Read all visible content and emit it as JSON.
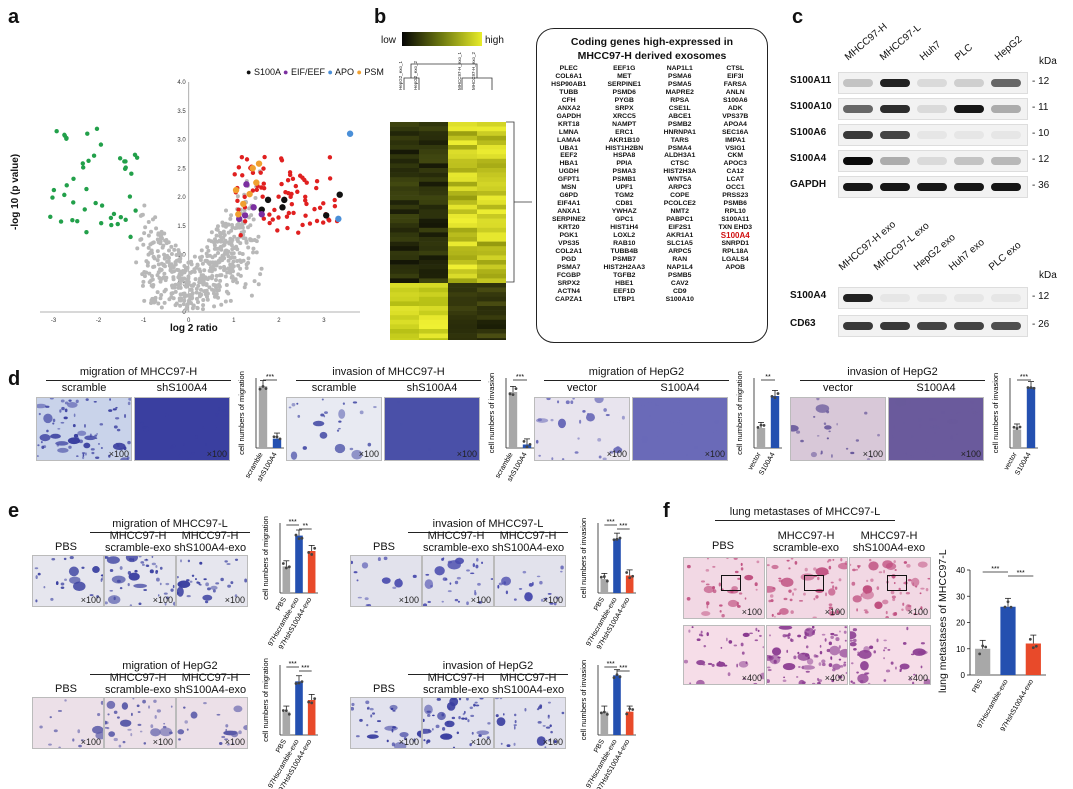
{
  "panels": {
    "a": "a",
    "b": "b",
    "c": "c",
    "d": "d",
    "e": "e",
    "f": "f"
  },
  "panel_a": {
    "legend": [
      {
        "label": "S100A",
        "color": "#111111"
      },
      {
        "label": "EIF/EEF",
        "color": "#7b2fa0"
      },
      {
        "label": "APO",
        "color": "#4a8fd8"
      },
      {
        "label": "PSM",
        "color": "#f0a030"
      }
    ],
    "ylabel": "-log 10 (p value)",
    "xlabel": "log 2 ratio",
    "xticks": [
      "-3",
      "-2",
      "-1",
      "0",
      "1",
      "2",
      "3"
    ],
    "yticks": [
      "0",
      "0.5",
      "1.0",
      "1.5",
      "2.0",
      "2.5",
      "3.0",
      "3.5",
      "4.0"
    ]
  },
  "panel_b": {
    "low": "low",
    "high": "high",
    "columns": [
      "HepG2_exo_1",
      "HepG2_exo_2",
      "MHCC97-H_exo_1",
      "MHCC97-H_exo_2"
    ],
    "box_title_1": "Coding genes high-expressed in",
    "box_title_2": "MHCC97-H derived exosomes",
    "genes": [
      "PLEC",
      "EEF1G",
      "NAP1L1",
      "CTSL",
      "COL6A1",
      "MET",
      "PSMA6",
      "EIF3I",
      "HSP90AB1",
      "SERPINE1",
      "PSMA5",
      "FARSA",
      "TUBB",
      "PSMD6",
      "MAPRE2",
      "ANLN",
      "CFH",
      "PYGB",
      "RPSA",
      "S100A6",
      "ANXA2",
      "SRPX",
      "CSE1L",
      "ADK",
      "GAPDH",
      "XRCC5",
      "ABCE1",
      "VPS37B",
      "KRT18",
      "NAMPT",
      "PSMB2",
      "APOA4",
      "LMNA",
      "ERC1",
      "HNRNPA1",
      "SEC16A",
      "LAMA4",
      "AKR1B10",
      "TARS",
      "IMPA1",
      "UBA1",
      "HIST1H2BN",
      "PSMA4",
      "VSIG1",
      "EEF2",
      "HSPA8",
      "ALDH3A1",
      "CKM",
      "HBA1",
      "PPIA",
      "CTSC",
      "APOC3",
      "UGDH",
      "PSMA3",
      "HIST2H3A",
      "CA12",
      "GFPT1",
      "PSMB1",
      "WNT5A",
      "LCAT",
      "MSN",
      "UPF1",
      "ARPC3",
      "OCC1",
      "G6PD",
      "TGM2",
      "COPE",
      "PRSS23",
      "EIF4A1",
      "CD81",
      "PCOLCE2",
      "PSMB6",
      "ANXA1",
      "YWHAZ",
      "NMT2",
      "RPL10",
      "SERPINE2",
      "GPC1",
      "PABPC1",
      "S100A11",
      "KRT20",
      "HIST1H4",
      "EIF2S1",
      "TXN EHD3",
      "PGK1",
      "LOXL2",
      "AKR1A1",
      "S100A4",
      "VPS35",
      "RAB10",
      "SLC1A5",
      "SNRPD1",
      "COL2A1",
      "TUBB4B",
      "ARPC5",
      "RPL18A",
      "PGD",
      "PSMB7",
      "RAN",
      "LGALS4",
      "PSMA7",
      "HIST2H2AA3",
      "NAP1L4",
      "APOB",
      "FCGBP",
      "TGFB2",
      "PSMB5",
      "",
      "SRPX2",
      "HBE1",
      "CAV2",
      "",
      "ACTN4",
      "EEF1D",
      "CD9",
      "",
      "CAPZA1",
      "LTBP1",
      "S100A10",
      ""
    ],
    "highlight": "S100A4"
  },
  "panel_c": {
    "top_lanes": [
      "MHCC97-H",
      "MHCC97-L",
      "Huh7",
      "PLC",
      "HepG2"
    ],
    "bottom_lanes": [
      "MHCC97-H exo",
      "MHCC97-L exo",
      "HepG2 exo",
      "Huh7 exo",
      "PLC exo"
    ],
    "kda": "kDa",
    "top_rows": [
      {
        "label": "S100A11",
        "kda": "- 12"
      },
      {
        "label": "S100A10",
        "kda": "- 11"
      },
      {
        "label": "S100A6",
        "kda": "- 10"
      },
      {
        "label": "S100A4",
        "kda": "- 12"
      },
      {
        "label": "GAPDH",
        "kda": "- 36"
      }
    ],
    "bottom_rows": [
      {
        "label": "S100A4",
        "kda": "- 12"
      },
      {
        "label": "CD63",
        "kda": "- 26"
      }
    ]
  },
  "panel_d": [
    {
      "title": "migration of MHCC97-H",
      "img_labels": [
        "scramble",
        "shS100A4"
      ],
      "ylabel": "cell numbers of migration",
      "cats": [
        "scramble",
        "shS100A4"
      ],
      "sig": "***"
    },
    {
      "title": "invasion of MHCC97-H",
      "img_labels": [
        "scramble",
        "shS100A4"
      ],
      "ylabel": "cell numbers of invasion",
      "cats": [
        "scramble",
        "shS100A4"
      ],
      "sig": "***"
    },
    {
      "title": "migration of HepG2",
      "img_labels": [
        "vector",
        "S100A4"
      ],
      "ylabel": "cell numbers of migration",
      "cats": [
        "vector",
        "S100A4"
      ],
      "sig": "**"
    },
    {
      "title": "invasion of HepG2",
      "img_labels": [
        "vector",
        "S100A4"
      ],
      "ylabel": "cell numbers of invasion",
      "cats": [
        "vector",
        "S100A4"
      ],
      "sig": "***"
    }
  ],
  "panel_e": [
    {
      "title": "migration of MHCC97-L",
      "img_labels": [
        "PBS",
        "MHCC97-H\nscramble-exo",
        "MHCC97-H\nshS100A4-exo"
      ],
      "ylabel": "cell numbers of migration",
      "cats": [
        "PBS",
        "97Hscramble-exo",
        "97HshS100A4-exo"
      ],
      "sig": [
        "***",
        "**"
      ]
    },
    {
      "title": "invasion of MHCC97-L",
      "img_labels": [
        "PBS",
        "MHCC97-H\nscramble-exo",
        "MHCC97-H\nshS100A4-exo"
      ],
      "ylabel": "cell numbers of invasion",
      "cats": [
        "PBS",
        "97Hscramble-exo",
        "97HshS100A4-exo"
      ],
      "sig": [
        "***",
        "***"
      ]
    },
    {
      "title": "migration of HepG2",
      "img_labels": [
        "PBS",
        "MHCC97-H\nscramble-exo",
        "MHCC97-H\nshS100A4-exo"
      ],
      "ylabel": "cell numbers of migration",
      "cats": [
        "PBS",
        "97Hscramble-exo",
        "97HshS100A4-exo"
      ],
      "sig": [
        "***",
        "***"
      ]
    },
    {
      "title": "invasion of HepG2",
      "img_labels": [
        "PBS",
        "MHCC97-H\nscramble-exo",
        "MHCC97-H\nshS100A4-exo"
      ],
      "ylabel": "cell numbers of invasion",
      "cats": [
        "PBS",
        "97Hscramble-exo",
        "97HshS100A4-exo"
      ],
      "sig": [
        "***",
        "***"
      ]
    }
  ],
  "panel_f": {
    "title": "lung metastases of MHCC97-L",
    "img_labels": [
      "PBS",
      "MHCC97-H\nscramble-exo",
      "MHCC97-H\nshS100A4-exo"
    ],
    "ylabel": "lung metastases of MHCC97-L",
    "cats": [
      "PBS",
      "97Hscramble-exo",
      "97HshS100A4-exo"
    ],
    "yticks": [
      "0",
      "10",
      "20",
      "30",
      "40"
    ],
    "sig": [
      "***",
      "***"
    ]
  },
  "magnifications": {
    "x100": "×100",
    "x400": "×400"
  },
  "chart_data": [
    {
      "type": "scatter",
      "title": "",
      "xlabel": "log 2 ratio",
      "ylabel": "-log 10 (p value)",
      "xlim": [
        -3.3,
        3.8
      ],
      "ylim": [
        0,
        4.0
      ],
      "series": [
        {
          "name": "S100A",
          "color": "#111111",
          "points": [
            [
              2.08,
              1.82
            ],
            [
              1.62,
              1.78
            ],
            [
              1.76,
              1.95
            ],
            [
              3.05,
              1.68
            ],
            [
              3.35,
              2.04
            ],
            [
              2.12,
              1.95
            ]
          ]
        },
        {
          "name": "EIF/EEF",
          "color": "#7b2fa0",
          "points": [
            [
              1.25,
              1.68
            ],
            [
              1.44,
              1.82
            ],
            [
              1.62,
              1.7
            ],
            [
              1.12,
              1.62
            ],
            [
              1.28,
              2.22
            ]
          ]
        },
        {
          "name": "APO",
          "color": "#4a8fd8",
          "points": [
            [
              3.32,
              1.62
            ],
            [
              3.58,
              3.1
            ]
          ]
        },
        {
          "name": "PSM",
          "color": "#f0a030",
          "points": [
            [
              1.05,
              2.12
            ],
            [
              1.21,
              1.88
            ],
            [
              1.42,
              2.5
            ],
            [
              1.56,
              2.58
            ],
            [
              1.1,
              1.7
            ],
            [
              1.35,
              2.05
            ],
            [
              1.5,
              2.25
            ]
          ]
        }
      ]
    },
    {
      "type": "bar",
      "title": "migration of MHCC97-H",
      "ylabel": "cell numbers of migration",
      "categories": [
        "scramble",
        "shS100A4"
      ],
      "values": [
        265,
        40
      ],
      "ylim": [
        0,
        300
      ],
      "colors": [
        "#a8a8a8",
        "#2450b0"
      ]
    },
    {
      "type": "bar",
      "title": "invasion of MHCC97-H",
      "ylabel": "cell numbers of invasion",
      "categories": [
        "scramble",
        "shS100A4"
      ],
      "values": [
        32,
        2
      ],
      "ylim": [
        0,
        40
      ],
      "colors": [
        "#a8a8a8",
        "#2450b0"
      ]
    },
    {
      "type": "bar",
      "title": "migration of HepG2",
      "ylabel": "cell numbers of migration",
      "categories": [
        "vector",
        "S100A4"
      ],
      "values": [
        20,
        52
      ],
      "ylim": [
        0,
        70
      ],
      "colors": [
        "#a8a8a8",
        "#2450b0"
      ]
    },
    {
      "type": "bar",
      "title": "invasion of HepG2",
      "ylabel": "cell numbers of invasion",
      "categories": [
        "vector",
        "S100A4"
      ],
      "values": [
        50,
        165
      ],
      "ylim": [
        0,
        190
      ],
      "colors": [
        "#a8a8a8",
        "#2450b0"
      ]
    },
    {
      "type": "bar",
      "title": "migration of MHCC97-L",
      "ylabel": "cell numbers of migration",
      "categories": [
        "PBS",
        "97Hscramble-exo",
        "97HshS100A4-exo"
      ],
      "values": [
        38,
        82,
        60
      ],
      "ylim": [
        0,
        100
      ],
      "colors": [
        "#a8a8a8",
        "#2450b0",
        "#e84a2a"
      ]
    },
    {
      "type": "bar",
      "title": "invasion of MHCC97-L",
      "ylabel": "cell numbers of invasion",
      "categories": [
        "PBS",
        "97Hscramble-exo",
        "97HshS100A4-exo"
      ],
      "values": [
        8,
        31,
        10
      ],
      "ylim": [
        0,
        40
      ],
      "colors": [
        "#a8a8a8",
        "#2450b0",
        "#e84a2a"
      ]
    },
    {
      "type": "bar",
      "title": "migration of HepG2",
      "ylabel": "cell numbers of migration",
      "categories": [
        "PBS",
        "97Hscramble-exo",
        "97HshS100A4-exo"
      ],
      "values": [
        20,
        46,
        30
      ],
      "ylim": [
        0,
        60
      ],
      "colors": [
        "#a8a8a8",
        "#2450b0",
        "#e84a2a"
      ]
    },
    {
      "type": "bar",
      "title": "invasion of HepG2",
      "ylabel": "cell numbers of invasion",
      "categories": [
        "PBS",
        "97Hscramble-exo",
        "97HshS100A4-exo"
      ],
      "values": [
        50,
        128,
        50
      ],
      "ylim": [
        0,
        150
      ],
      "colors": [
        "#a8a8a8",
        "#2450b0",
        "#e84a2a"
      ]
    },
    {
      "type": "bar",
      "title": "lung metastases of MHCC97-L",
      "ylabel": "lung metastases of MHCC97-L",
      "categories": [
        "PBS",
        "97Hscramble-exo",
        "97HshS100A4-exo"
      ],
      "values": [
        10,
        26,
        12
      ],
      "ylim": [
        0,
        40
      ],
      "colors": [
        "#a8a8a8",
        "#2450b0",
        "#e84a2a"
      ]
    }
  ]
}
